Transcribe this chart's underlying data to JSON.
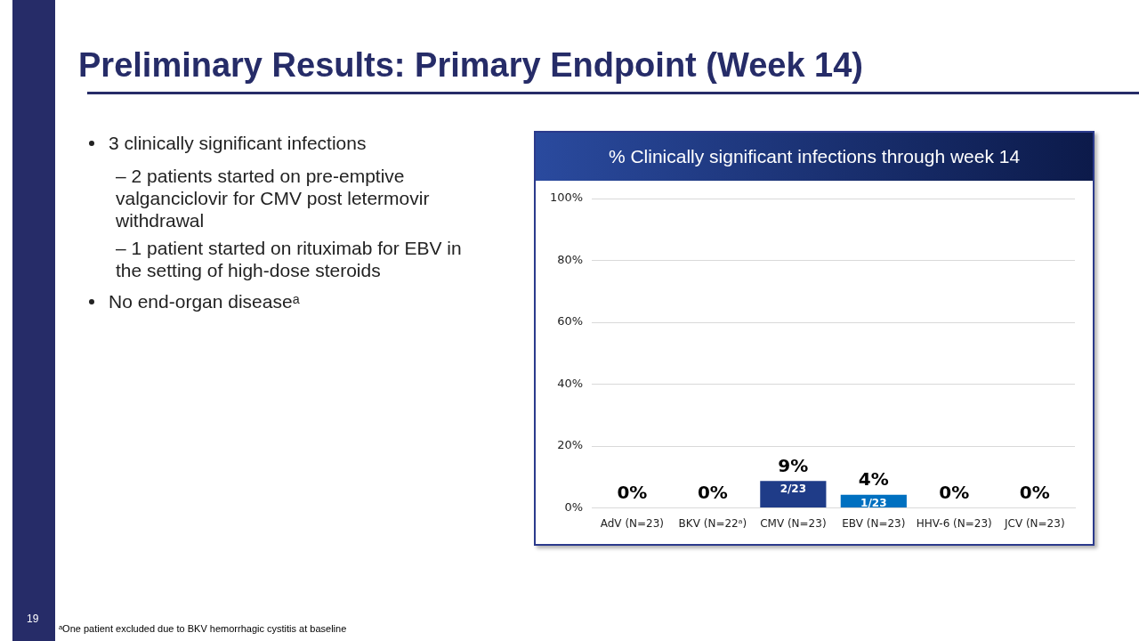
{
  "chart_data": [
    {
      "type": "other",
      "title": "Preliminary Results: Primary Endpoint (Week 14)",
      "annotations": [
        "3 clinically significant infections",
        "– 2 patients started on pre-emptive valganciclovir for CMV post letermovir withdrawal",
        "– 1 patient started on rituximab for EBV in the setting of high-dose steroids",
        "No end-organ diseaseᵃ",
        "ᵃOne patient excluded due to BKV hemorrhagic cystitis at baseline",
        "19"
      ]
    },
    {
      "type": "bar",
      "title": "% Clinically significant infections through week 14",
      "categories": [
        "AdV (N=23)",
        "BKV (N=22ᵃ)",
        "CMV (N=23)",
        "EBV (N=23)",
        "HHV-6 (N=23)",
        "JCV (N=23)"
      ],
      "values": [
        0,
        0,
        8.7,
        4.3,
        0,
        0
      ],
      "colors": [
        "#1f3c88",
        "#1f3c88",
        "#1f3c88",
        "#0070c0",
        "#1f3c88",
        "#1f3c88"
      ],
      "value_labels": [
        "0%",
        "0%",
        "9%",
        "4%",
        "0%",
        "0%"
      ],
      "ylim": [
        0,
        100
      ],
      "yticks": [
        {
          "value": 0,
          "label": "0%"
        },
        {
          "value": 20,
          "label": "20%"
        },
        {
          "value": 40,
          "label": "40%"
        },
        {
          "value": 60,
          "label": "60%"
        },
        {
          "value": 80,
          "label": "80%"
        },
        {
          "value": 100,
          "label": "100%"
        }
      ],
      "grid": "y",
      "legend": false,
      "annotations": [
        {
          "text": "2/23",
          "x": "CMV (N=23)",
          "y": 8.7
        },
        {
          "text": "1/23",
          "x": "EBV (N=23)",
          "y": 4.3
        }
      ]
    }
  ]
}
